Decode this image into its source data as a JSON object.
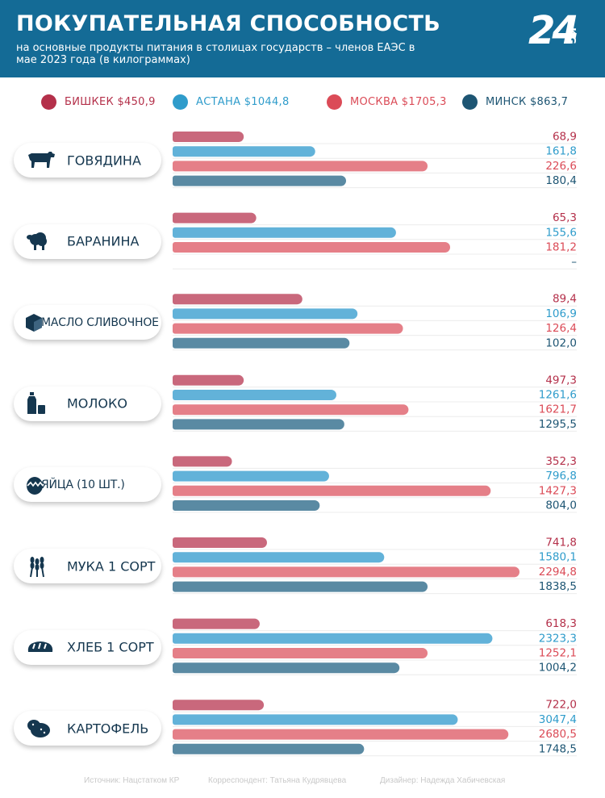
{
  "header": {
    "title": "ПОКУПАТЕЛЬНАЯ СПОСОБНОСТЬ",
    "subtitle": "на основные продукты питания в столицах государств – членов ЕАЭС в мае 2023 года (в килограммах)",
    "logo_number": "24",
    "logo_suffix": "KG"
  },
  "legend": [
    {
      "label": "БИШКЕК $450,9",
      "color": "#b4304a",
      "text_color": "#b4304a"
    },
    {
      "label": "АСТАНА $1044,8",
      "color": "#2f9ccb",
      "text_color": "#2f9ccb"
    },
    {
      "label": "МОСКВА $1705,3",
      "color": "#db4b57",
      "text_color": "#db4b57"
    },
    {
      "label": "МИНСК $863,7",
      "color": "#1d5573",
      "text_color": "#1d5573"
    }
  ],
  "chart_data": {
    "type": "bar",
    "orientation": "horizontal",
    "series_names": [
      "БИШКЕК $450,9",
      "АСТАНА $1044,8",
      "МОСКВА $1705,3",
      "МИНСК $863,7"
    ],
    "colors": [
      "#c9687c",
      "#62b2d9",
      "#e57f88",
      "#5a8aa3"
    ],
    "label_colors": [
      "#b4304a",
      "#2f9ccb",
      "#db4b57",
      "#1d5573"
    ],
    "categories": [
      {
        "name": "ГОВЯДИНА",
        "icon": "cow-icon",
        "values": [
          68.9,
          161.8,
          226.6,
          180.4
        ],
        "labels": [
          "68,9",
          "161,8",
          "226,6",
          "180,4"
        ],
        "bar_fraction": [
          0.205,
          0.411,
          0.735,
          0.5
        ]
      },
      {
        "name": "БАРАНИНА",
        "icon": "sheep-icon",
        "values": [
          65.3,
          155.6,
          181.2,
          null
        ],
        "labels": [
          "65,3",
          "155,6",
          "181,2",
          "–"
        ],
        "bar_fraction": [
          0.241,
          0.644,
          0.8,
          0
        ]
      },
      {
        "name": "МАСЛО СЛИВОЧНОЕ",
        "icon": "butter-icon",
        "values": [
          89.4,
          106.9,
          126.4,
          102.0
        ],
        "labels": [
          "89,4",
          "106,9",
          "126,4",
          "102,0"
        ],
        "bar_fraction": [
          0.374,
          0.533,
          0.664,
          0.51
        ]
      },
      {
        "name": "МОЛОКО",
        "icon": "milk-icon",
        "values": [
          497.3,
          1261.6,
          1621.7,
          1295.5
        ],
        "labels": [
          "497,3",
          "1261,6",
          "1621,7",
          "1295,5"
        ],
        "bar_fraction": [
          0.205,
          0.472,
          0.68,
          0.495
        ]
      },
      {
        "name": "ЯЙЦА (10 ШТ.)",
        "icon": "eggs-icon",
        "values": [
          352.3,
          796.8,
          1427.3,
          804.0
        ],
        "labels": [
          "352,3",
          "796,8",
          "1427,3",
          "804,0"
        ],
        "bar_fraction": [
          0.171,
          0.451,
          0.917,
          0.424
        ]
      },
      {
        "name": "МУКА 1 СОРТ",
        "icon": "wheat-icon",
        "values": [
          741.8,
          1580.1,
          2294.8,
          1838.5
        ],
        "labels": [
          "741,8",
          "1580,1",
          "2294,8",
          "1838,5"
        ],
        "bar_fraction": [
          0.272,
          0.61,
          1.0,
          0.735
        ]
      },
      {
        "name": "ХЛЕБ 1 СОРТ",
        "icon": "bread-icon",
        "values": [
          618.3,
          2323.3,
          1252.1,
          1004.2
        ],
        "labels": [
          "618,3",
          "2323,3",
          "1252,1",
          "1004,2"
        ],
        "bar_fraction": [
          0.251,
          0.922,
          0.735,
          0.654
        ]
      },
      {
        "name": "КАРТОФЕЛЬ",
        "icon": "potato-icon",
        "values": [
          722.0,
          3047.4,
          2680.5,
          1748.5
        ],
        "labels": [
          "722,0",
          "3047,4",
          "2680,5",
          "1748,5"
        ],
        "bar_fraction": [
          0.263,
          0.822,
          0.968,
          0.552
        ]
      }
    ]
  },
  "footer": {
    "source": "Источник: Нацстатком КР",
    "correspondent": "Корреспондент: Татьяна Кудрявцева",
    "designer": "Дизайнер: Надежда Хабичевская"
  }
}
